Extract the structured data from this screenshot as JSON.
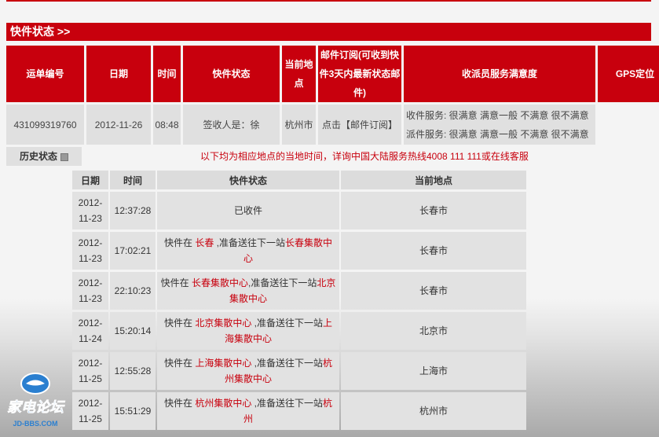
{
  "section_title": "快件状态 >>",
  "main_table": {
    "headers": [
      "运单编号",
      "日期",
      "时间",
      "快件状态",
      "当前地点",
      "邮件订阅(可收到快件3天内最新状态邮件)",
      "收派员服务满意度",
      "GPS定位"
    ],
    "row": {
      "waybill": "431099319760",
      "date": "2012-11-26",
      "time": "08:48",
      "status": "签收人是：徐",
      "location": "杭州市",
      "subscribe": "点击【邮件订阅】",
      "satisfaction_pickup": "收件服务: 很满意 满意一般 不满意 很不满意",
      "satisfaction_delivery": "派件服务: 很满意 满意一般 不满意 很不满意"
    }
  },
  "history_label": "历史状态",
  "notice": "以下均为相应地点的当地时间，详询中国大陆服务热线4008 111 111或在线客服",
  "history_table": {
    "headers": [
      "日期",
      "时间",
      "快件状态",
      "当前地点"
    ],
    "rows": [
      {
        "date": "2012-11-23",
        "time": "12:37:28",
        "prefix": "已收件",
        "at": "",
        "mid": "",
        "next": "",
        "location": "长春市"
      },
      {
        "date": "2012-11-23",
        "time": "17:02:21",
        "prefix": "快件在 ",
        "at": "长春",
        "mid": " ,准备送往下一站",
        "next": "长春集散中心",
        "location": "长春市"
      },
      {
        "date": "2012-11-23",
        "time": "22:10:23",
        "prefix": "快件在 ",
        "at": "长春集散中心",
        "mid": ",准备送往下一站",
        "next": "北京集散中心",
        "location": "长春市"
      },
      {
        "date": "2012-11-24",
        "time": "15:20:14",
        "prefix": "快件在 ",
        "at": "北京集散中心",
        "mid": " ,准备送往下一站",
        "next": "上海集散中心",
        "location": "北京市"
      },
      {
        "date": "2012-11-25",
        "time": "12:55:28",
        "prefix": "快件在 ",
        "at": "上海集散中心",
        "mid": " ,准备送往下一站",
        "next": "杭州集散中心",
        "location": "上海市"
      },
      {
        "date": "2012-11-25",
        "time": "15:51:29",
        "prefix": "快件在 ",
        "at": "杭州集散中心",
        "mid": " ,准备送往下一站",
        "next": "杭州",
        "location": "杭州市"
      }
    ]
  },
  "watermark": {
    "text": "家电论坛",
    "sub": "JD-BBS.COM"
  },
  "colors": {
    "brand_red": "#c8000d",
    "cell_grey": "#e0e0e0"
  }
}
